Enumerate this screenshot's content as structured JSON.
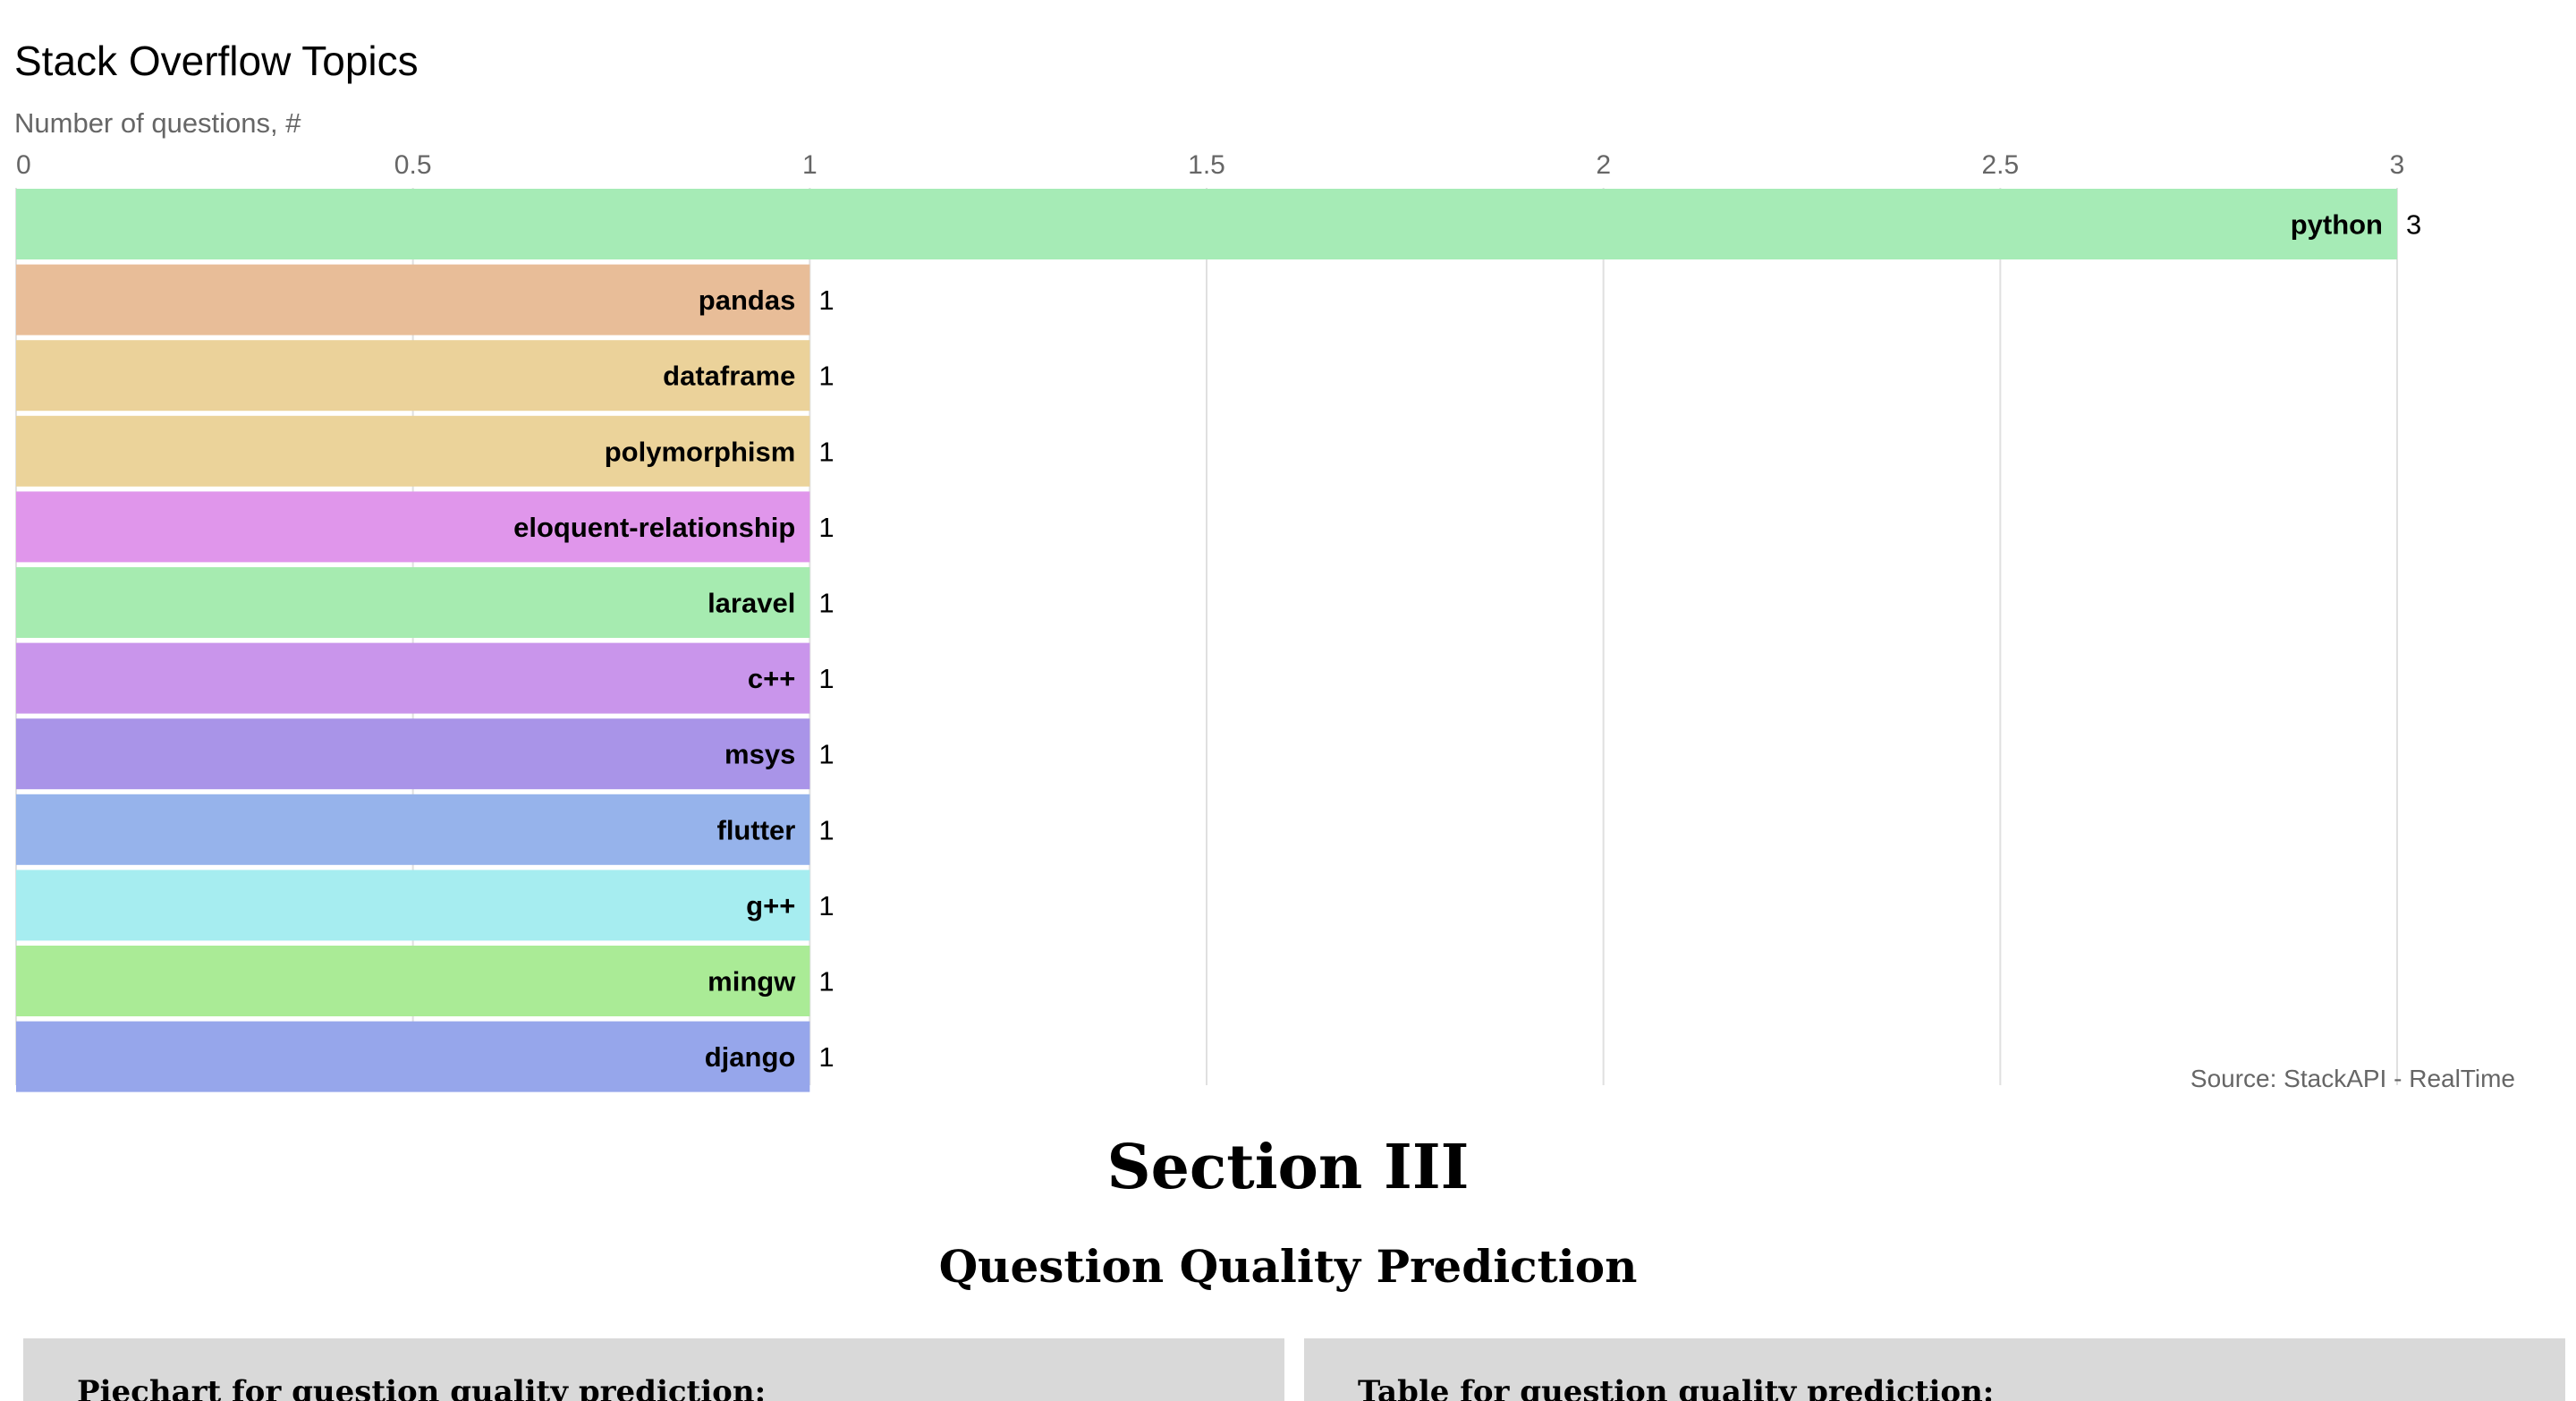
{
  "chart_data": {
    "type": "bar",
    "orientation": "horizontal",
    "title": "Stack Overflow Topics",
    "subtitle": "Number of questions, #",
    "source": "Source: StackAPI - RealTime",
    "xlim": [
      0,
      3
    ],
    "ticks": [
      0,
      0.5,
      1,
      1.5,
      2,
      2.5,
      3
    ],
    "grid": true,
    "categories": [
      "python",
      "pandas",
      "dataframe",
      "polymorphism",
      "eloquent-relationship",
      "laravel",
      "c++",
      "msys",
      "flutter",
      "g++",
      "mingw",
      "django"
    ],
    "values": [
      3,
      1,
      1,
      1,
      1,
      1,
      1,
      1,
      1,
      1,
      1,
      1
    ],
    "colors": [
      "#a6ebb6",
      "#e8bd98",
      "#ebd29a",
      "#ebd39a",
      "#e096eb",
      "#a6ebb0",
      "#c995eb",
      "#a994e8",
      "#96b3eb",
      "#a6edf0",
      "#aaeb96",
      "#96a6eb"
    ]
  },
  "section": {
    "heading": "Section III",
    "subheading": "Question Quality Prediction"
  },
  "panels": {
    "left_title": "Piechart for question quality prediction:",
    "right_title": "Table for question quality prediction:"
  }
}
